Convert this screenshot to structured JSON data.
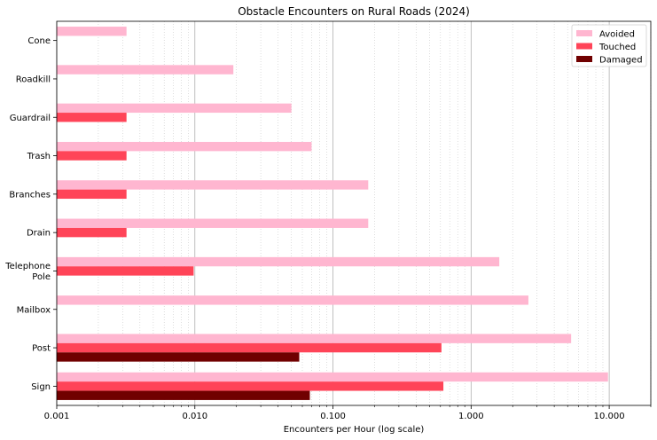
{
  "chart_data": {
    "type": "bar",
    "orientation": "horizontal",
    "title": "Obstacle Encounters on Rural Roads (2024)",
    "xlabel": "Encounters per Hour (log scale)",
    "ylabel": "",
    "x_scale": "log",
    "xlim": [
      0.001,
      20
    ],
    "x_ticks": [
      0.001,
      0.01,
      0.1,
      1,
      10
    ],
    "x_tick_labels": [
      "0.001",
      "0.010",
      "0.100",
      "1.000",
      "10.000"
    ],
    "grid": "x-major-and-minor",
    "legend_position": "top-right",
    "categories": [
      "Sign",
      "Post",
      "Mailbox",
      "Telephone Pole",
      "Drain",
      "Branches",
      "Trash",
      "Guardrail",
      "Roadkill",
      "Cone"
    ],
    "category_lines": [
      [
        "Sign"
      ],
      [
        "Post"
      ],
      [
        "Mailbox"
      ],
      [
        "Telephone",
        "Pole"
      ],
      [
        "Drain"
      ],
      [
        "Branches"
      ],
      [
        "Trash"
      ],
      [
        "Guardrail"
      ],
      [
        "Roadkill"
      ],
      [
        "Cone"
      ]
    ],
    "series": [
      {
        "name": "Avoided",
        "color": "#ffb6d0",
        "values": [
          9.8,
          5.3,
          2.6,
          1.6,
          0.18,
          0.18,
          0.07,
          0.05,
          0.019,
          0.0032
        ]
      },
      {
        "name": "Touched",
        "color": "#ff4458",
        "values": [
          0.63,
          0.61,
          null,
          0.0098,
          0.0032,
          0.0032,
          0.0032,
          0.0032,
          null,
          null
        ]
      },
      {
        "name": "Damaged",
        "color": "#700000",
        "values": [
          0.068,
          0.057,
          null,
          null,
          null,
          null,
          null,
          null,
          null,
          null
        ]
      }
    ]
  }
}
